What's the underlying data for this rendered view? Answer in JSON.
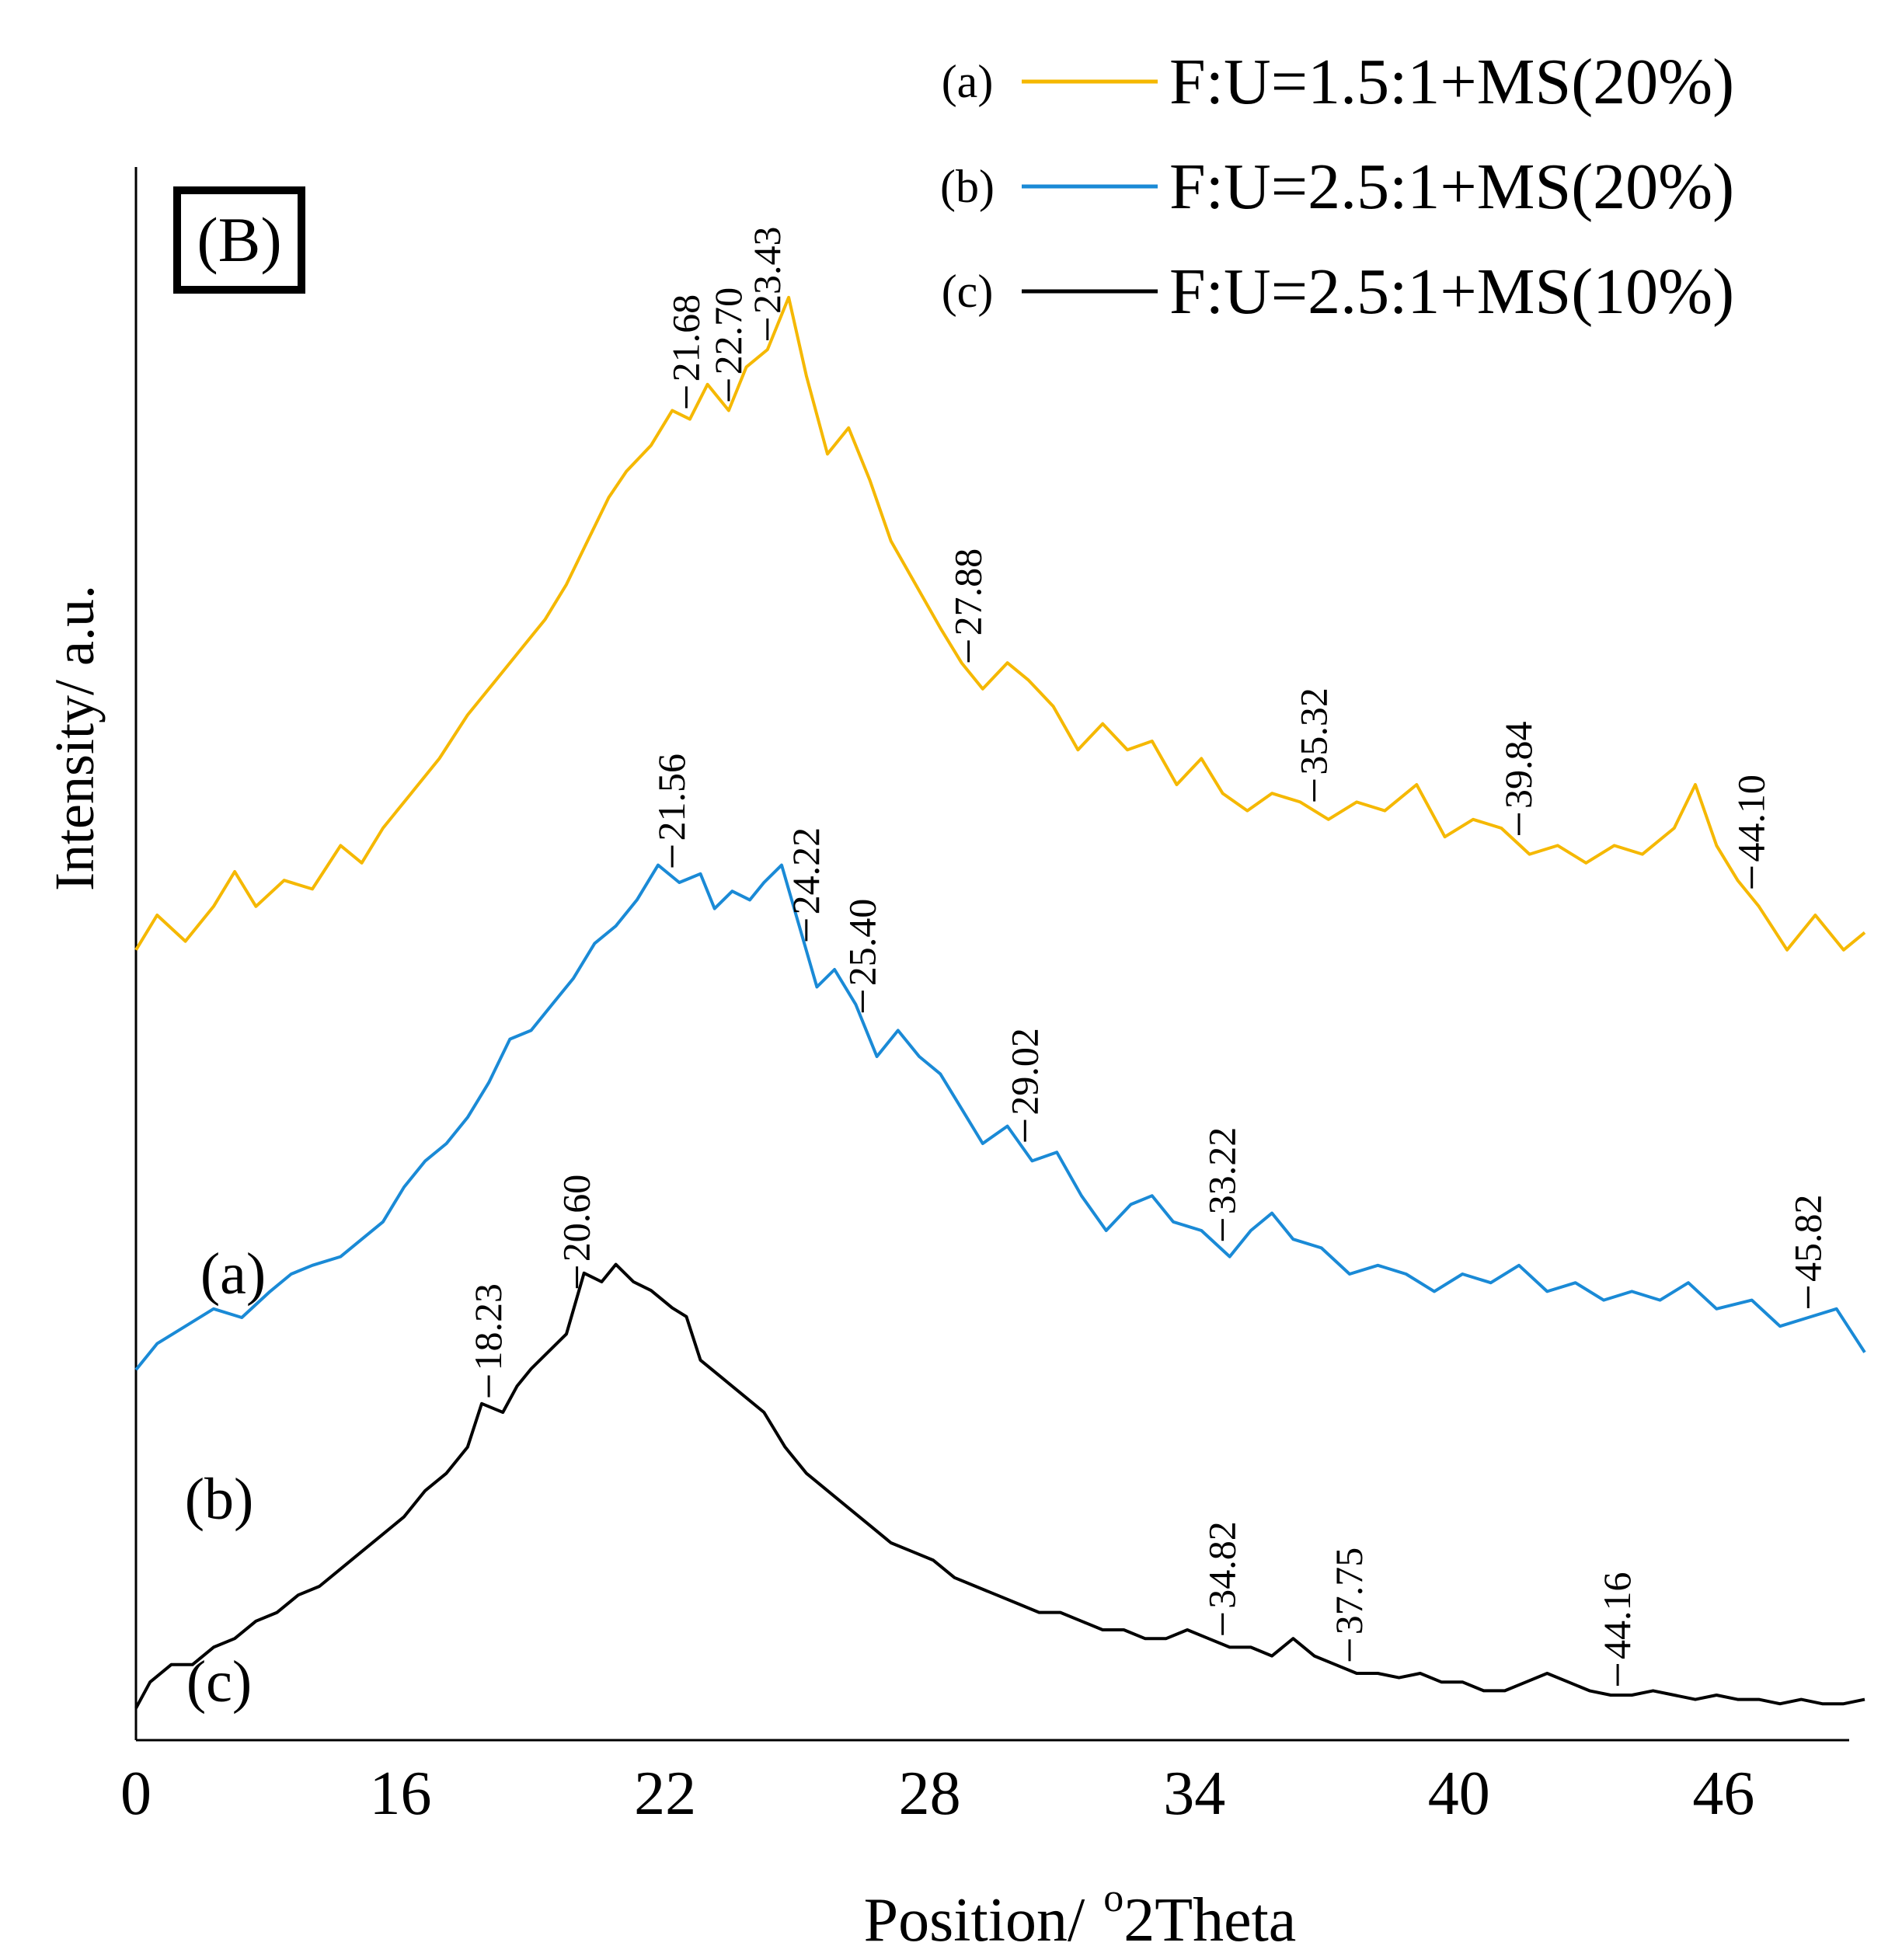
{
  "chart_data": {
    "type": "line",
    "panel_label": "(B)",
    "xlabel": "Position/ °2Theta",
    "xlabel_prefix": "Position/",
    "xlabel_degree": "o",
    "xlabel_suffix": "2Theta",
    "ylabel": "Intensity/ a.u.",
    "xlim": [
      0,
      49
    ],
    "xticks": [
      {
        "label": "0",
        "x": 0
      },
      {
        "label": "16",
        "x": 7.5
      },
      {
        "label": "22",
        "x": 15
      },
      {
        "label": "28",
        "x": 22.5
      },
      {
        "label": "34",
        "x": 30
      },
      {
        "label": "40",
        "x": 37.5
      },
      {
        "label": "46",
        "x": 45
      }
    ],
    "legend_position": "top-right",
    "legend": [
      {
        "tag": "(a)",
        "text": "F:U=1.5:1+MS(20%)",
        "color": "#F5B800"
      },
      {
        "tag": "(b)",
        "text": "F:U=2.5:1+MS(20%)",
        "color": "#1A8AD6"
      },
      {
        "tag": "(c)",
        "text": "F:U=2.5:1+MS(10%)",
        "color": "#000000"
      }
    ],
    "series": [
      {
        "tag": "(a)",
        "color": "#F5B800",
        "points": [
          [
            0,
            0.62
          ],
          [
            0.6,
            0.7
          ],
          [
            1.4,
            0.64
          ],
          [
            2.2,
            0.72
          ],
          [
            2.8,
            0.8
          ],
          [
            3.4,
            0.72
          ],
          [
            4.2,
            0.78
          ],
          [
            5.0,
            0.76
          ],
          [
            5.8,
            0.86
          ],
          [
            6.4,
            0.82
          ],
          [
            7.0,
            0.9
          ],
          [
            7.8,
            0.98
          ],
          [
            8.6,
            1.06
          ],
          [
            9.4,
            1.16
          ],
          [
            10.2,
            1.24
          ],
          [
            11.0,
            1.32
          ],
          [
            11.6,
            1.38
          ],
          [
            12.2,
            1.46
          ],
          [
            12.8,
            1.56
          ],
          [
            13.4,
            1.66
          ],
          [
            13.9,
            1.72
          ],
          [
            14.6,
            1.78
          ],
          [
            15.2,
            1.86
          ],
          [
            15.7,
            1.84
          ],
          [
            16.2,
            1.92
          ],
          [
            16.8,
            1.86
          ],
          [
            17.3,
            1.96
          ],
          [
            17.9,
            2.0
          ],
          [
            18.5,
            2.12
          ],
          [
            19.0,
            1.94
          ],
          [
            19.6,
            1.76
          ],
          [
            20.2,
            1.82
          ],
          [
            20.8,
            1.7
          ],
          [
            21.4,
            1.56
          ],
          [
            22.1,
            1.46
          ],
          [
            22.8,
            1.36
          ],
          [
            23.4,
            1.28
          ],
          [
            24.0,
            1.22
          ],
          [
            24.7,
            1.28
          ],
          [
            25.3,
            1.24
          ],
          [
            26.0,
            1.18
          ],
          [
            26.7,
            1.08
          ],
          [
            27.4,
            1.14
          ],
          [
            28.1,
            1.08
          ],
          [
            28.8,
            1.1
          ],
          [
            29.5,
            1.0
          ],
          [
            30.2,
            1.06
          ],
          [
            30.8,
            0.98
          ],
          [
            31.5,
            0.94
          ],
          [
            32.2,
            0.98
          ],
          [
            33.0,
            0.96
          ],
          [
            33.8,
            0.92
          ],
          [
            34.6,
            0.96
          ],
          [
            35.4,
            0.94
          ],
          [
            36.3,
            1.0
          ],
          [
            37.1,
            0.88
          ],
          [
            37.9,
            0.92
          ],
          [
            38.7,
            0.9
          ],
          [
            39.5,
            0.84
          ],
          [
            40.3,
            0.86
          ],
          [
            41.1,
            0.82
          ],
          [
            41.9,
            0.86
          ],
          [
            42.7,
            0.84
          ],
          [
            43.6,
            0.9
          ],
          [
            44.2,
            1.0
          ],
          [
            44.8,
            0.86
          ],
          [
            45.4,
            0.78
          ],
          [
            46.0,
            0.72
          ],
          [
            46.8,
            0.62
          ],
          [
            47.6,
            0.7
          ],
          [
            48.4,
            0.62
          ],
          [
            49.0,
            0.66
          ]
        ]
      },
      {
        "tag": "(b)",
        "color": "#1A8AD6",
        "points": [
          [
            0,
            0.28
          ],
          [
            0.6,
            0.34
          ],
          [
            1.4,
            0.38
          ],
          [
            2.2,
            0.42
          ],
          [
            3.0,
            0.4
          ],
          [
            3.8,
            0.46
          ],
          [
            4.4,
            0.5
          ],
          [
            5.0,
            0.52
          ],
          [
            5.8,
            0.54
          ],
          [
            6.4,
            0.58
          ],
          [
            7.0,
            0.62
          ],
          [
            7.6,
            0.7
          ],
          [
            8.2,
            0.76
          ],
          [
            8.8,
            0.8
          ],
          [
            9.4,
            0.86
          ],
          [
            10.0,
            0.94
          ],
          [
            10.6,
            1.04
          ],
          [
            11.2,
            1.06
          ],
          [
            11.8,
            1.12
          ],
          [
            12.4,
            1.18
          ],
          [
            13.0,
            1.26
          ],
          [
            13.6,
            1.3
          ],
          [
            14.2,
            1.36
          ],
          [
            14.8,
            1.44
          ],
          [
            15.4,
            1.4
          ],
          [
            16.0,
            1.42
          ],
          [
            16.4,
            1.34
          ],
          [
            16.9,
            1.38
          ],
          [
            17.4,
            1.36
          ],
          [
            17.8,
            1.4
          ],
          [
            18.3,
            1.44
          ],
          [
            18.8,
            1.3
          ],
          [
            19.3,
            1.16
          ],
          [
            19.8,
            1.2
          ],
          [
            20.4,
            1.12
          ],
          [
            21.0,
            1.0
          ],
          [
            21.6,
            1.06
          ],
          [
            22.2,
            1.0
          ],
          [
            22.8,
            0.96
          ],
          [
            23.4,
            0.88
          ],
          [
            24.0,
            0.8
          ],
          [
            24.7,
            0.84
          ],
          [
            25.4,
            0.76
          ],
          [
            26.1,
            0.78
          ],
          [
            26.8,
            0.68
          ],
          [
            27.5,
            0.6
          ],
          [
            28.2,
            0.66
          ],
          [
            28.8,
            0.68
          ],
          [
            29.4,
            0.62
          ],
          [
            30.2,
            0.6
          ],
          [
            31.0,
            0.54
          ],
          [
            31.6,
            0.6
          ],
          [
            32.2,
            0.64
          ],
          [
            32.8,
            0.58
          ],
          [
            33.6,
            0.56
          ],
          [
            34.4,
            0.5
          ],
          [
            35.2,
            0.52
          ],
          [
            36.0,
            0.5
          ],
          [
            36.8,
            0.46
          ],
          [
            37.6,
            0.5
          ],
          [
            38.4,
            0.48
          ],
          [
            39.2,
            0.52
          ],
          [
            40.0,
            0.46
          ],
          [
            40.8,
            0.48
          ],
          [
            41.6,
            0.44
          ],
          [
            42.4,
            0.46
          ],
          [
            43.2,
            0.44
          ],
          [
            44.0,
            0.48
          ],
          [
            44.8,
            0.42
          ],
          [
            45.8,
            0.44
          ],
          [
            46.6,
            0.38
          ],
          [
            47.4,
            0.4
          ],
          [
            48.2,
            0.42
          ],
          [
            49.0,
            0.32
          ]
        ]
      },
      {
        "tag": "(c)",
        "color": "#000000",
        "points": [
          [
            0,
            0.02
          ],
          [
            0.4,
            0.08
          ],
          [
            1.0,
            0.12
          ],
          [
            1.6,
            0.12
          ],
          [
            2.2,
            0.16
          ],
          [
            2.8,
            0.18
          ],
          [
            3.4,
            0.22
          ],
          [
            4.0,
            0.24
          ],
          [
            4.6,
            0.28
          ],
          [
            5.2,
            0.3
          ],
          [
            5.8,
            0.34
          ],
          [
            6.4,
            0.38
          ],
          [
            7.0,
            0.42
          ],
          [
            7.6,
            0.46
          ],
          [
            8.2,
            0.52
          ],
          [
            8.8,
            0.56
          ],
          [
            9.4,
            0.62
          ],
          [
            9.8,
            0.72
          ],
          [
            10.4,
            0.7
          ],
          [
            10.8,
            0.76
          ],
          [
            11.2,
            0.8
          ],
          [
            11.7,
            0.84
          ],
          [
            12.2,
            0.88
          ],
          [
            12.7,
            1.02
          ],
          [
            13.2,
            1.0
          ],
          [
            13.6,
            1.04
          ],
          [
            14.1,
            1.0
          ],
          [
            14.6,
            0.98
          ],
          [
            15.2,
            0.94
          ],
          [
            15.6,
            0.92
          ],
          [
            16.0,
            0.82
          ],
          [
            16.6,
            0.78
          ],
          [
            17.2,
            0.74
          ],
          [
            17.8,
            0.7
          ],
          [
            18.4,
            0.62
          ],
          [
            19.0,
            0.56
          ],
          [
            19.6,
            0.52
          ],
          [
            20.2,
            0.48
          ],
          [
            20.8,
            0.44
          ],
          [
            21.4,
            0.4
          ],
          [
            22.0,
            0.38
          ],
          [
            22.6,
            0.36
          ],
          [
            23.2,
            0.32
          ],
          [
            23.8,
            0.3
          ],
          [
            24.4,
            0.28
          ],
          [
            25.0,
            0.26
          ],
          [
            25.6,
            0.24
          ],
          [
            26.2,
            0.24
          ],
          [
            26.8,
            0.22
          ],
          [
            27.4,
            0.2
          ],
          [
            28.0,
            0.2
          ],
          [
            28.6,
            0.18
          ],
          [
            29.2,
            0.18
          ],
          [
            29.8,
            0.2
          ],
          [
            30.4,
            0.18
          ],
          [
            31.0,
            0.16
          ],
          [
            31.6,
            0.16
          ],
          [
            32.2,
            0.14
          ],
          [
            32.8,
            0.18
          ],
          [
            33.4,
            0.14
          ],
          [
            34.0,
            0.12
          ],
          [
            34.6,
            0.1
          ],
          [
            35.2,
            0.1
          ],
          [
            35.8,
            0.09
          ],
          [
            36.4,
            0.1
          ],
          [
            37.0,
            0.08
          ],
          [
            37.6,
            0.08
          ],
          [
            38.2,
            0.06
          ],
          [
            38.8,
            0.06
          ],
          [
            39.4,
            0.08
          ],
          [
            40.0,
            0.1
          ],
          [
            40.6,
            0.08
          ],
          [
            41.2,
            0.06
          ],
          [
            41.8,
            0.05
          ],
          [
            42.4,
            0.05
          ],
          [
            43.0,
            0.06
          ],
          [
            43.6,
            0.05
          ],
          [
            44.2,
            0.04
          ],
          [
            44.8,
            0.05
          ],
          [
            45.4,
            0.04
          ],
          [
            46.0,
            0.04
          ],
          [
            46.6,
            0.03
          ],
          [
            47.2,
            0.04
          ],
          [
            47.8,
            0.03
          ],
          [
            48.4,
            0.03
          ],
          [
            49.0,
            0.04
          ]
        ]
      }
    ],
    "series_tags": [
      {
        "text": "(a)",
        "series": 0
      },
      {
        "text": "(b)",
        "series": 1
      },
      {
        "text": "(c)",
        "series": 2
      }
    ],
    "peak_labels": [
      {
        "text": "21.68",
        "x": 15.6,
        "series": 0
      },
      {
        "text": "22.70",
        "x": 16.8,
        "series": 0
      },
      {
        "text": "23.43",
        "x": 17.9,
        "series": 0
      },
      {
        "text": "27.88",
        "x": 23.6,
        "series": 0
      },
      {
        "text": "35.32",
        "x": 33.4,
        "series": 0
      },
      {
        "text": "39.84",
        "x": 39.2,
        "series": 0
      },
      {
        "text": "44.10",
        "x": 45.8,
        "series": 0
      },
      {
        "text": "21.56",
        "x": 15.2,
        "series": 1
      },
      {
        "text": "24.22",
        "x": 19.0,
        "series": 1
      },
      {
        "text": "25.40",
        "x": 20.6,
        "series": 1
      },
      {
        "text": "29.02",
        "x": 25.2,
        "series": 1
      },
      {
        "text": "33.22",
        "x": 30.8,
        "series": 1
      },
      {
        "text": "45.82",
        "x": 47.4,
        "series": 1
      },
      {
        "text": "18.23",
        "x": 10.0,
        "series": 2
      },
      {
        "text": "20.60",
        "x": 12.5,
        "series": 2
      },
      {
        "text": "34.82",
        "x": 30.8,
        "series": 2
      },
      {
        "text": "37.75",
        "x": 34.4,
        "series": 2
      },
      {
        "text": "44.16",
        "x": 42.0,
        "series": 2
      }
    ]
  }
}
